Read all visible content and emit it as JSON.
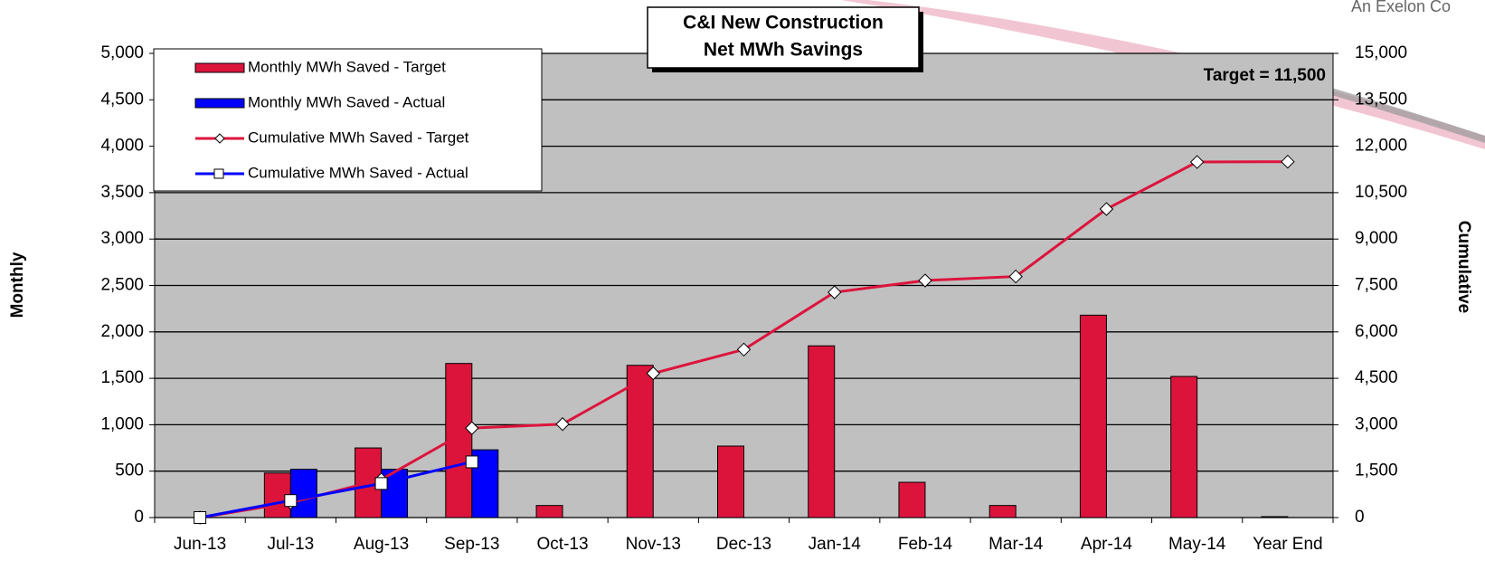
{
  "chart_data": {
    "type": "bar",
    "title": [
      "C&I New Construction",
      "Net MWh Savings"
    ],
    "logo_text": "An Exelon Co",
    "annotation": "Target = 11,500",
    "y_label": "Monthly",
    "y2_label": "Cumulative",
    "categories": [
      "Jun-13",
      "Jul-13",
      "Aug-13",
      "Sep-13",
      "Oct-13",
      "Nov-13",
      "Dec-13",
      "Jan-14",
      "Feb-14",
      "Mar-14",
      "Apr-14",
      "May-14",
      "Year End"
    ],
    "series": [
      {
        "name": "Monthly MWh Saved - Target",
        "type": "bar",
        "color": "#dc143c",
        "values": [
          0,
          480,
          750,
          1660,
          130,
          1640,
          770,
          1850,
          380,
          130,
          2180,
          1520,
          10
        ]
      },
      {
        "name": "Monthly MWh Saved - Actual",
        "type": "bar",
        "color": "#0000ff",
        "values": [
          0,
          520,
          520,
          730,
          null,
          null,
          null,
          null,
          null,
          null,
          null,
          null,
          null
        ]
      },
      {
        "name": "Cumulative MWh Saved - Target",
        "type": "line",
        "marker": "diamond",
        "axis": "y2",
        "color": "#dc143c",
        "values": [
          0,
          480,
          1230,
          2890,
          3020,
          4660,
          5430,
          7280,
          7660,
          7790,
          9970,
          11490,
          11500
        ]
      },
      {
        "name": "Cumulative MWh Saved - Actual",
        "type": "line",
        "marker": "square",
        "axis": "y2",
        "color": "#0000ff",
        "values": [
          0,
          550,
          1100,
          1800,
          null,
          null,
          null,
          null,
          null,
          null,
          null,
          null,
          null
        ]
      }
    ],
    "ylim": [
      0,
      5000
    ],
    "yticks": [
      0,
      500,
      {
        "value": 1000,
        "label": "1,000"
      },
      {
        "value": 1500,
        "label": "1,500"
      },
      {
        "value": 2000,
        "label": "2,000"
      },
      {
        "value": 2500,
        "label": "2,500"
      },
      {
        "value": 3000,
        "label": "3,000"
      },
      {
        "value": 3500,
        "label": "3,500"
      },
      {
        "value": 4000,
        "label": "4,000"
      },
      {
        "value": 4500,
        "label": "4,500"
      },
      {
        "value": 5000,
        "label": "5,000"
      }
    ],
    "y2lim": [
      0,
      15000
    ],
    "y2ticks": [
      0,
      {
        "value": 1500,
        "label": "1,500"
      },
      {
        "value": 3000,
        "label": "3,000"
      },
      {
        "value": 4500,
        "label": "4,500"
      },
      {
        "value": 6000,
        "label": "6,000"
      },
      {
        "value": 7500,
        "label": "7,500"
      },
      {
        "value": 9000,
        "label": "9,000"
      },
      {
        "value": 10500,
        "label": "10,500"
      },
      {
        "value": 12000,
        "label": "12,000"
      },
      {
        "value": 13500,
        "label": "13,500"
      },
      {
        "value": 15000,
        "label": "15,000"
      }
    ],
    "grid": true,
    "legend": "upper left",
    "plot_background": "#c0c0c0"
  }
}
